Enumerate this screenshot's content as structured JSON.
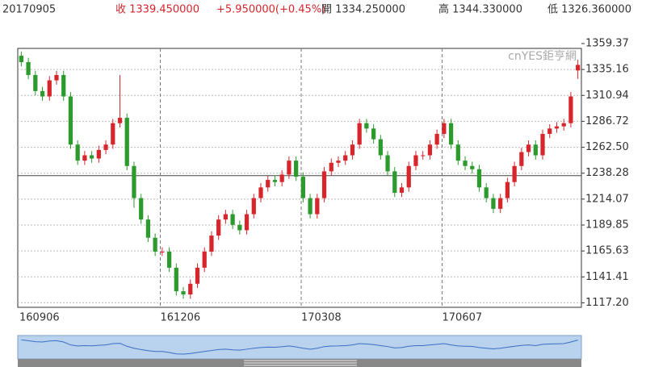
{
  "header": {
    "date": "20170905",
    "close": "收 1339.450000",
    "change": "+5.950000(+0.45%)",
    "open": "開 1334.250000",
    "high": "高 1344.330000",
    "low": "低 1326.360000"
  },
  "chart_data": {
    "type": "candlestick",
    "watermark": "cnYES鉅亨網",
    "categories": [
      "160906",
      null,
      null,
      null,
      null,
      null,
      null,
      null,
      null,
      null,
      null,
      null,
      null,
      null,
      null,
      null,
      null,
      null,
      null,
      null,
      "161206",
      null,
      null,
      null,
      null,
      null,
      null,
      null,
      null,
      null,
      null,
      null,
      null,
      null,
      null,
      null,
      null,
      null,
      null,
      null,
      "170308",
      null,
      null,
      null,
      null,
      null,
      null,
      null,
      null,
      null,
      null,
      null,
      null,
      null,
      null,
      null,
      null,
      null,
      null,
      null,
      "170607",
      null,
      null,
      null,
      null,
      null,
      null,
      null,
      null,
      null,
      null,
      null,
      null,
      null,
      null,
      null,
      null,
      null,
      null,
      null
    ],
    "open": [
      1348,
      1342,
      1330,
      1315,
      1310,
      1325,
      1330,
      1310,
      1265,
      1250,
      1255,
      1252,
      1260,
      1265,
      1285,
      1290,
      1245,
      1215,
      1195,
      1178,
      1165,
      1165,
      1150,
      1128,
      1125,
      1135,
      1150,
      1165,
      1180,
      1195,
      1200,
      1190,
      1185,
      1200,
      1215,
      1225,
      1232,
      1230,
      1237,
      1250,
      1235,
      1215,
      1200,
      1215,
      1240,
      1248,
      1250,
      1255,
      1265,
      1285,
      1280,
      1270,
      1255,
      1240,
      1220,
      1225,
      1245,
      1255,
      1255,
      1265,
      1275,
      1285,
      1265,
      1250,
      1245,
      1242,
      1225,
      1215,
      1205,
      1215,
      1230,
      1245,
      1258,
      1265,
      1255,
      1275,
      1280,
      1282,
      1285,
      1334.25
    ],
    "high": [
      1352,
      1346,
      1334,
      1319,
      1329,
      1334,
      1334,
      1314,
      1269,
      1259,
      1259,
      1264,
      1269,
      1289,
      1330,
      1294,
      1249,
      1219,
      1199,
      1182,
      1169,
      1169,
      1154,
      1132,
      1139,
      1154,
      1169,
      1184,
      1199,
      1204,
      1204,
      1194,
      1204,
      1219,
      1229,
      1236,
      1236,
      1241,
      1254,
      1254,
      1239,
      1219,
      1219,
      1244,
      1252,
      1254,
      1259,
      1269,
      1289,
      1289,
      1284,
      1274,
      1259,
      1244,
      1229,
      1249,
      1259,
      1259,
      1269,
      1279,
      1289,
      1289,
      1269,
      1254,
      1249,
      1246,
      1229,
      1219,
      1219,
      1234,
      1249,
      1262,
      1269,
      1269,
      1279,
      1284,
      1286,
      1289,
      1314,
      1344.33
    ],
    "low": [
      1338,
      1326,
      1311,
      1306,
      1306,
      1321,
      1306,
      1261,
      1246,
      1246,
      1248,
      1248,
      1256,
      1261,
      1281,
      1241,
      1206,
      1191,
      1174,
      1161,
      1161,
      1146,
      1124,
      1121,
      1121,
      1131,
      1146,
      1161,
      1176,
      1191,
      1186,
      1181,
      1181,
      1196,
      1211,
      1221,
      1226,
      1226,
      1233,
      1231,
      1211,
      1196,
      1196,
      1211,
      1236,
      1244,
      1246,
      1251,
      1261,
      1276,
      1266,
      1251,
      1236,
      1216,
      1216,
      1221,
      1241,
      1251,
      1251,
      1261,
      1271,
      1261,
      1246,
      1241,
      1238,
      1221,
      1211,
      1201,
      1201,
      1211,
      1226,
      1241,
      1254,
      1251,
      1251,
      1271,
      1276,
      1278,
      1281,
      1326.36
    ],
    "close": [
      1342,
      1330,
      1315,
      1310,
      1325,
      1330,
      1310,
      1265,
      1250,
      1255,
      1252,
      1260,
      1265,
      1285,
      1290,
      1245,
      1215,
      1195,
      1178,
      1165,
      1165,
      1150,
      1128,
      1125,
      1135,
      1150,
      1165,
      1180,
      1195,
      1200,
      1190,
      1185,
      1200,
      1215,
      1225,
      1232,
      1230,
      1237,
      1250,
      1235,
      1215,
      1200,
      1215,
      1240,
      1248,
      1250,
      1255,
      1265,
      1285,
      1280,
      1270,
      1255,
      1240,
      1220,
      1225,
      1245,
      1255,
      1255,
      1265,
      1275,
      1285,
      1265,
      1250,
      1245,
      1242,
      1225,
      1215,
      1205,
      1215,
      1230,
      1245,
      1258,
      1265,
      1255,
      1275,
      1280,
      1282,
      1285,
      1310,
      1339.45
    ],
    "up_color": "#d7262b",
    "down_color": "#2c9a2c",
    "ylim": [
      1113.0,
      1359.37
    ],
    "yticks": [
      1359.37,
      1335.16,
      1310.94,
      1286.72,
      {
        "value": 1262.5,
        "label": "1262.50"
      },
      1238.28,
      1214.07,
      1189.85,
      1165.63,
      1141.41,
      {
        "value": 1117.2,
        "label": "1117.20"
      }
    ],
    "reference_line": 1236,
    "grid": true
  }
}
